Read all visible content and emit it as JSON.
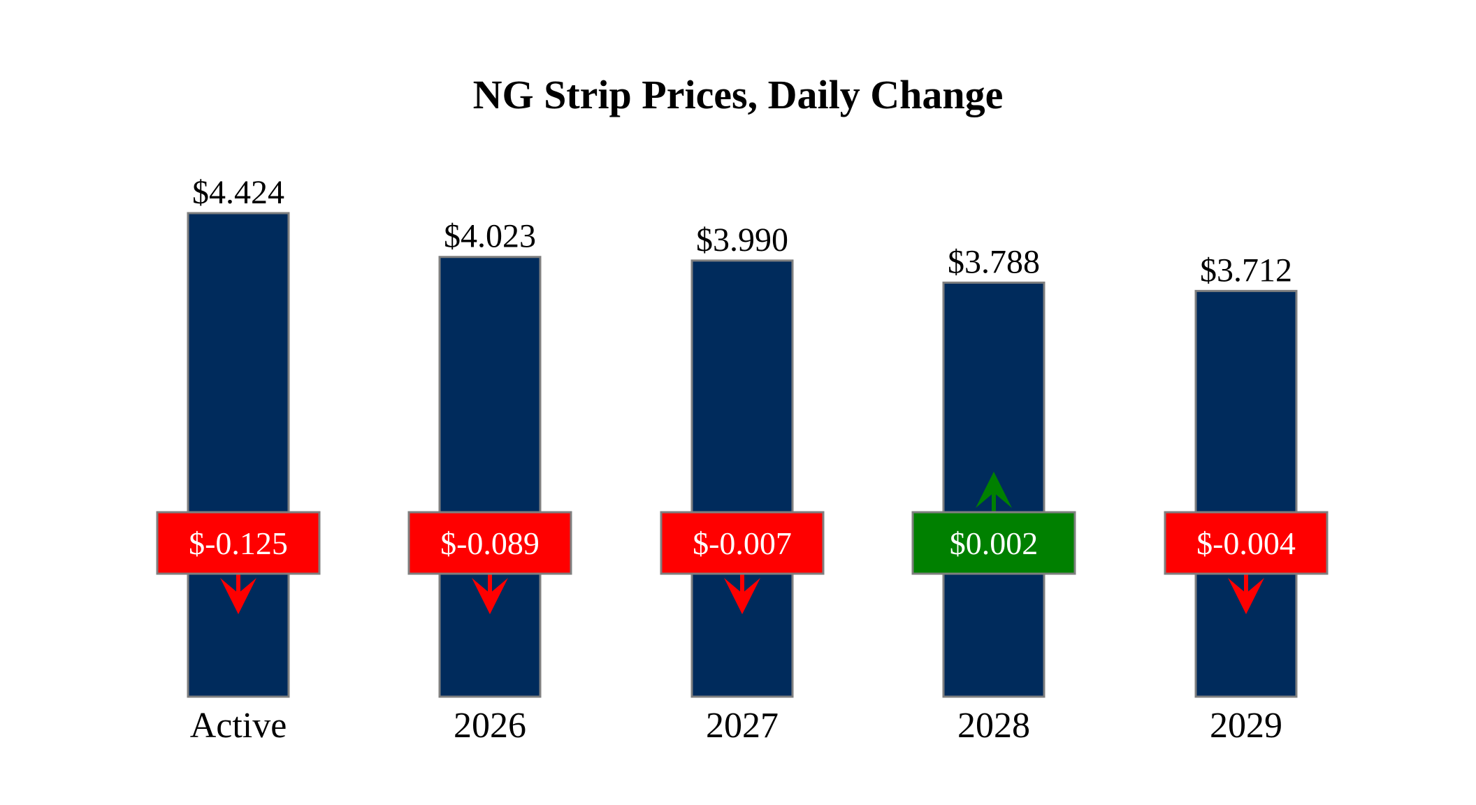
{
  "colors": {
    "bar": "#002b5c",
    "bar_border": "#7f7f7f",
    "negative": "#ff0000",
    "positive": "#008000",
    "box_border": "#7f7f7f"
  },
  "chart_data": {
    "type": "bar",
    "title": "NG Strip Prices, Daily Change",
    "xlabel": "",
    "ylabel": "",
    "ylim": [
      0,
      4.424
    ],
    "categories": [
      "Active",
      "2026",
      "2027",
      "2028",
      "2029"
    ],
    "values": [
      4.424,
      4.023,
      3.99,
      3.788,
      3.712
    ],
    "value_labels": [
      "$4.424",
      "$4.023",
      "$3.990",
      "$3.788",
      "$3.712"
    ],
    "changes": [
      -0.125,
      -0.089,
      -0.007,
      0.002,
      -0.004
    ],
    "change_labels": [
      "$-0.125",
      "$-0.089",
      "$-0.007",
      "$0.002",
      "$-0.004"
    ],
    "grid": false,
    "legend": "none"
  }
}
